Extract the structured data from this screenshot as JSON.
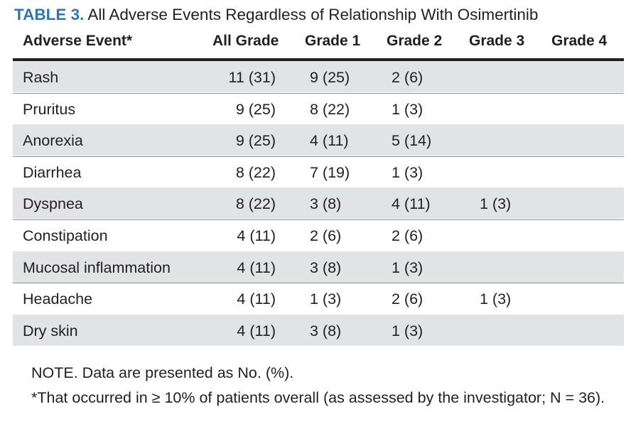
{
  "caption": {
    "label": "TABLE 3.",
    "text": "All Adverse Events Regardless of Relationship With Osimertinib"
  },
  "headers": [
    "Adverse Event*",
    "All Grade",
    "Grade 1",
    "Grade 2",
    "Grade 3",
    "Grade 4"
  ],
  "rows": [
    {
      "event": "Rash",
      "all": "11 (31)",
      "g1": "9 (25)",
      "g2": "2 (6)",
      "g3": "",
      "g4": ""
    },
    {
      "event": "Pruritus",
      "all": "9 (25)",
      "g1": "8 (22)",
      "g2": "1 (3)",
      "g3": "",
      "g4": ""
    },
    {
      "event": "Anorexia",
      "all": "9 (25)",
      "g1": "4 (11)",
      "g2": "5 (14)",
      "g3": "",
      "g4": ""
    },
    {
      "event": "Diarrhea",
      "all": "8 (22)",
      "g1": "7 (19)",
      "g2": "1 (3)",
      "g3": "",
      "g4": ""
    },
    {
      "event": "Dyspnea",
      "all": "8 (22)",
      "g1": "3 (8)",
      "g2": "4 (11)",
      "g3": "1 (3)",
      "g4": ""
    },
    {
      "event": "Constipation",
      "all": "4 (11)",
      "g1": "2 (6)",
      "g2": "2 (6)",
      "g3": "",
      "g4": ""
    },
    {
      "event": "Mucosal inflammation",
      "all": "4 (11)",
      "g1": "3 (8)",
      "g2": "1 (3)",
      "g3": "",
      "g4": ""
    },
    {
      "event": "Headache",
      "all": "4 (11)",
      "g1": "1 (3)",
      "g2": "2 (6)",
      "g3": "1 (3)",
      "g4": ""
    },
    {
      "event": "Dry skin",
      "all": "4 (11)",
      "g1": "3 (8)",
      "g2": "1 (3)",
      "g3": "",
      "g4": ""
    }
  ],
  "notes": {
    "note1": "NOTE. Data are presented as No. (%).",
    "note2": "*That occurred in ≥ 10% of patients overall (as assessed by the investigator; N = 36)."
  },
  "colors": {
    "caption_label": "#2f74b5",
    "row_shade": "#e2e3e4"
  }
}
